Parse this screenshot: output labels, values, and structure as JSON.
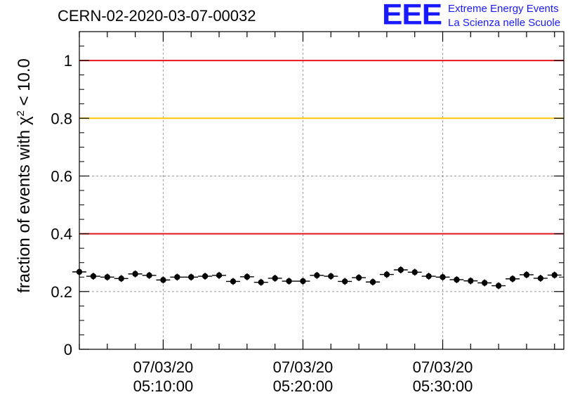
{
  "header": {
    "run_id": "CERN-02-2020-03-07-00032",
    "logo_mark": "EEE",
    "logo_line1": "Extreme Energy Events",
    "logo_line2": "La Scienza nelle Scuole"
  },
  "colors": {
    "threshold_red": "#e8141e",
    "threshold_yellow": "#ffc800",
    "brand_blue": "#1a1aff",
    "marker": "#000000",
    "grid": "#9a9a9a"
  },
  "chart_data": {
    "type": "scatter",
    "title": "CERN-02-2020-03-07-00032",
    "ylabel": "fraction of events with χ² < 10.0",
    "xlabel": "",
    "xlim": [
      "2020-03-07 05:04:00",
      "2020-03-07 05:38:40"
    ],
    "ylim": [
      0,
      1.1
    ],
    "yticks": [
      0,
      0.2,
      0.4,
      0.6,
      0.8,
      1
    ],
    "ytick_labels": [
      "0",
      "0.2",
      "0.4",
      "0.6",
      "0.8",
      "1"
    ],
    "xticks": [
      "2020-03-07 05:10:00",
      "2020-03-07 05:20:00",
      "2020-03-07 05:30:00"
    ],
    "xtick_labels": [
      [
        "07/03/20",
        "05:10:00"
      ],
      [
        "07/03/20",
        "05:20:00"
      ],
      [
        "07/03/20",
        "05:30:00"
      ]
    ],
    "grid": true,
    "reference_lines": [
      {
        "y": 1.0,
        "color": "red"
      },
      {
        "y": 0.8,
        "color": "yellow"
      },
      {
        "y": 0.4,
        "color": "red"
      }
    ],
    "series": [
      {
        "x": [
          "05:04:00",
          "05:05:00",
          "05:06:00",
          "05:07:00",
          "05:08:00",
          "05:09:00",
          "05:10:00",
          "05:11:00",
          "05:12:00",
          "05:13:00",
          "05:14:00",
          "05:15:00",
          "05:16:00",
          "05:17:00",
          "05:18:00",
          "05:19:00",
          "05:20:00",
          "05:21:00",
          "05:22:00",
          "05:23:00",
          "05:24:00",
          "05:25:00",
          "05:26:00",
          "05:27:00",
          "05:28:00",
          "05:29:00",
          "05:30:00",
          "05:31:00",
          "05:32:00",
          "05:33:00",
          "05:34:00",
          "05:35:00",
          "05:36:00",
          "05:37:00",
          "05:38:00"
        ],
        "y": [
          0.268,
          0.253,
          0.25,
          0.245,
          0.261,
          0.256,
          0.24,
          0.25,
          0.25,
          0.253,
          0.256,
          0.235,
          0.251,
          0.232,
          0.246,
          0.236,
          0.236,
          0.256,
          0.253,
          0.235,
          0.248,
          0.233,
          0.259,
          0.275,
          0.267,
          0.253,
          0.25,
          0.241,
          0.237,
          0.23,
          0.22,
          0.244,
          0.258,
          0.246,
          0.257
        ],
        "x_halfwidth_seconds": 30,
        "y_error": 0.012
      }
    ]
  }
}
